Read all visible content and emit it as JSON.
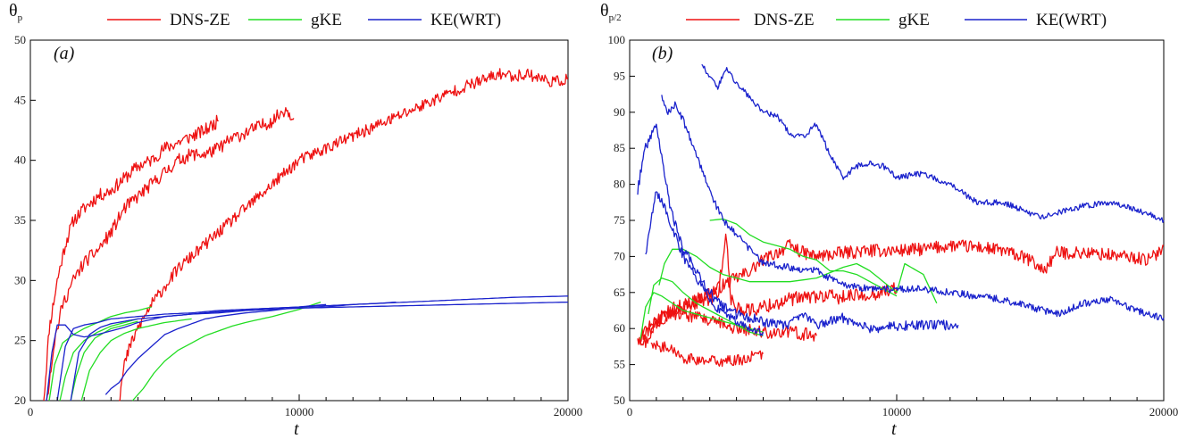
{
  "chart_data": [
    {
      "type": "line",
      "panel_label": "(a)",
      "ylabel_main": "θ",
      "ylabel_sub": "p",
      "xlabel": "t",
      "xlim": [
        0,
        20000
      ],
      "ylim": [
        20,
        50
      ],
      "xticks": [
        0,
        10000,
        20000
      ],
      "yticks": [
        20,
        25,
        30,
        35,
        40,
        45,
        50
      ],
      "grid": false,
      "legend": "top",
      "colors": {
        "DNS-ZE": "#ee1111",
        "gKE": "#22dd22",
        "KE(WRT)": "#1a22cc"
      },
      "series": [
        {
          "name": "DNS-ZE",
          "x": [
            500,
            700,
            1000,
            1300,
            1600,
            2000,
            2500,
            3000,
            3500,
            4000,
            4500,
            5000,
            5500,
            6000,
            6500,
            7000
          ],
          "y": [
            20,
            26,
            30,
            33,
            35,
            36,
            37,
            37.5,
            38.5,
            39.5,
            40,
            41,
            41.5,
            42,
            42.5,
            43.3
          ],
          "noise": 0.55
        },
        {
          "name": "DNS-ZE",
          "x": [
            600,
            900,
            1200,
            1600,
            2000,
            2500,
            3000,
            3500,
            4000,
            4500,
            5000,
            5500,
            6000,
            6500,
            7000,
            7500,
            8000,
            8500,
            9000,
            9500,
            9800
          ],
          "y": [
            20,
            25,
            28,
            30,
            31.5,
            32.5,
            34,
            36,
            37,
            38,
            39,
            40,
            40.5,
            40.5,
            41,
            41.8,
            42.3,
            42.8,
            43.3,
            44.3,
            43.5
          ],
          "noise": 0.55
        },
        {
          "name": "DNS-ZE",
          "x": [
            3300,
            3500,
            3700,
            4000,
            4500,
            5000,
            5500,
            6000,
            6500,
            7000,
            7500,
            8000,
            8500,
            9000,
            9500,
            10000,
            11000,
            12000,
            13000,
            14000,
            15000,
            16000,
            17000,
            17500,
            18000,
            18500,
            19000,
            19500,
            20000
          ],
          "y": [
            20,
            23,
            24.5,
            26,
            28,
            29.5,
            31,
            32,
            33,
            34,
            35,
            36,
            37,
            38,
            39,
            40,
            41,
            42,
            43,
            44,
            45,
            46,
            46.8,
            47.2,
            47,
            47.2,
            46.8,
            46.5,
            46.8
          ],
          "noise": 0.5
        },
        {
          "name": "gKE",
          "x": [
            700,
            900,
            1200,
            1600,
            2000,
            2500,
            3000,
            3500,
            4000,
            4500
          ],
          "y": [
            20,
            23,
            24.8,
            25.5,
            26,
            26.5,
            27,
            27.3,
            27.5,
            27.8
          ],
          "noise": 0
        },
        {
          "name": "gKE",
          "x": [
            1100,
            1300,
            1600,
            2000,
            2500,
            3000,
            3500,
            4000
          ],
          "y": [
            20,
            22,
            24,
            25,
            25.7,
            26.2,
            26.5,
            26.8
          ],
          "noise": 0
        },
        {
          "name": "gKE",
          "x": [
            1500,
            1700,
            2000,
            2400,
            3000,
            3500,
            4000
          ],
          "y": [
            20,
            22,
            24,
            25.2,
            26,
            26.3,
            26.6
          ],
          "noise": 0
        },
        {
          "name": "gKE",
          "x": [
            1900,
            2200,
            2600,
            3000,
            3500,
            4000,
            5000,
            6000
          ],
          "y": [
            20,
            22.5,
            24,
            25,
            25.6,
            26,
            26.5,
            26.8
          ],
          "noise": 0
        },
        {
          "name": "gKE",
          "x": [
            3800,
            4200,
            4600,
            5000,
            5500,
            6000,
            6500,
            7000,
            7500,
            8000,
            9000,
            10000,
            10800
          ],
          "y": [
            20,
            21,
            22.3,
            23.3,
            24.2,
            24.8,
            25.4,
            25.8,
            26.2,
            26.5,
            27,
            27.6,
            28.2
          ],
          "noise": 0
        },
        {
          "name": "KE(WRT)",
          "x": [
            600,
            800,
            1000,
            1300,
            1600,
            2000,
            2500,
            3000,
            3500,
            4000,
            5000,
            6000,
            7000,
            8000,
            9000,
            10000,
            12000,
            14000,
            16000,
            18000,
            20000
          ],
          "y": [
            20,
            24,
            26.3,
            26.3,
            25.5,
            25.3,
            25.5,
            25.8,
            26.1,
            26.5,
            27,
            27.2,
            27.4,
            27.5,
            27.6,
            27.7,
            27.8,
            27.9,
            28,
            28.1,
            28.2
          ],
          "noise": 0
        },
        {
          "name": "KE(WRT)",
          "x": [
            1000,
            1300,
            1600,
            2000,
            2500,
            3000,
            3500,
            4000,
            5000,
            6000,
            7000,
            8000,
            9000,
            10000,
            12000,
            14000,
            16000,
            18000,
            20000
          ],
          "y": [
            20,
            24.5,
            26,
            26.3,
            26.5,
            26.8,
            26.9,
            27,
            27.2,
            27.3,
            27.5,
            27.6,
            27.7,
            27.8,
            28,
            28.2,
            28.4,
            28.6,
            28.7
          ],
          "noise": 0
        },
        {
          "name": "KE(WRT)",
          "x": [
            1500,
            1800,
            2200,
            2600,
            3000,
            3500,
            4000,
            5000,
            6000,
            7000,
            8000,
            9000,
            10000,
            11000,
            12000,
            13000,
            13600
          ],
          "y": [
            20,
            24,
            25.5,
            26.1,
            26.4,
            26.6,
            26.8,
            27,
            27.2,
            27.3,
            27.5,
            27.6,
            27.7,
            27.8,
            28,
            28.1,
            28.2
          ],
          "noise": 0
        },
        {
          "name": "KE(WRT)",
          "x": [
            2800,
            3000,
            3300,
            3600,
            4000,
            4500,
            5000,
            5500,
            6000,
            6500,
            7000,
            8000,
            9000,
            10000,
            11000
          ],
          "y": [
            20.5,
            21,
            21.5,
            22.5,
            23.5,
            24.5,
            25.5,
            26,
            26.4,
            26.8,
            27,
            27.3,
            27.5,
            27.8,
            28
          ],
          "noise": 0
        }
      ]
    },
    {
      "type": "line",
      "panel_label": "(b)",
      "ylabel_main": "θ",
      "ylabel_sub": "p/2",
      "xlabel": "t",
      "xlim": [
        0,
        20000
      ],
      "ylim": [
        50,
        100
      ],
      "xticks": [
        0,
        10000,
        20000
      ],
      "yticks": [
        50,
        55,
        60,
        65,
        70,
        75,
        80,
        85,
        90,
        95,
        100
      ],
      "grid": false,
      "legend": "top",
      "colors": {
        "DNS-ZE": "#ee1111",
        "gKE": "#22dd22",
        "KE(WRT)": "#1a22cc"
      },
      "series": [
        {
          "name": "DNS-ZE",
          "x": [
            300,
            600,
            1000,
            1500,
            2000,
            2500,
            3000,
            3500,
            4000,
            4500,
            5000,
            5500,
            6000,
            6500,
            7000,
            8000,
            9000,
            10000,
            11000,
            12000,
            13000,
            14000,
            15000,
            15500,
            16000,
            17000,
            18000,
            19000,
            19500,
            20000
          ],
          "y": [
            59,
            58,
            61,
            62,
            63,
            64,
            65,
            66,
            67,
            68,
            69.5,
            70.5,
            71.5,
            70.5,
            70,
            70.5,
            70.8,
            70.8,
            71,
            71.5,
            71.3,
            70.8,
            69.5,
            68,
            70.5,
            70.5,
            70.2,
            69.8,
            69.5,
            71.5
          ],
          "noise": 0.9
        },
        {
          "name": "DNS-ZE",
          "x": [
            400,
            800,
            1300,
            1800,
            2300,
            2800,
            3300,
            3600,
            3800,
            4000,
            4500,
            5000,
            6000,
            7000,
            8000,
            9000,
            10000
          ],
          "y": [
            59,
            60,
            62,
            63,
            63.5,
            64,
            64.5,
            73,
            64,
            63,
            62.5,
            63,
            64,
            64.5,
            64.3,
            64.8,
            65.5
          ],
          "noise": 1.0
        },
        {
          "name": "DNS-ZE",
          "x": [
            300,
            600,
            1000,
            1500,
            2000,
            2500,
            3000,
            3500,
            4000,
            4500,
            5000,
            6000,
            7000
          ],
          "y": [
            58,
            60,
            61,
            62,
            62,
            61.5,
            61,
            60.5,
            60,
            59.8,
            59.5,
            59.5,
            59
          ],
          "noise": 0.9
        },
        {
          "name": "DNS-ZE",
          "x": [
            800,
            1200,
            1600,
            2000,
            2500,
            3000,
            3500,
            4000,
            4500,
            5000
          ],
          "y": [
            58,
            57.5,
            57,
            56,
            55.5,
            55.5,
            55.5,
            55.5,
            56,
            56.5
          ],
          "noise": 0.8
        },
        {
          "name": "gKE",
          "x": [
            400,
            600,
            900,
            1200,
            1600,
            2000,
            2500,
            3000,
            3500,
            4000,
            4500,
            5000
          ],
          "y": [
            58.5,
            63,
            65,
            64.5,
            63.5,
            62.5,
            62,
            61.5,
            61,
            60.5,
            60,
            59.5
          ],
          "noise": 0
        },
        {
          "name": "gKE",
          "x": [
            700,
            900,
            1200,
            1600,
            2000,
            2500,
            3000,
            3500,
            4000,
            4500,
            5000
          ],
          "y": [
            62,
            66,
            67,
            66.5,
            65,
            63.5,
            62.5,
            61.5,
            60.5,
            59.5,
            59
          ],
          "noise": 0
        },
        {
          "name": "gKE",
          "x": [
            1100,
            1300,
            1600,
            2000,
            2500,
            3000,
            3500,
            4000,
            4500,
            5000,
            6000,
            7000,
            8000,
            8500,
            9000,
            9500,
            10000,
            10300,
            11000,
            11500
          ],
          "y": [
            66,
            69,
            71,
            71,
            70,
            68.5,
            67.5,
            67,
            66.5,
            66.5,
            66.5,
            67,
            68.5,
            69,
            68,
            66.5,
            65,
            69,
            67.5,
            63.5
          ],
          "noise": 0
        },
        {
          "name": "gKE",
          "x": [
            3000,
            3500,
            4000,
            4500,
            5000,
            5500,
            6000,
            6500,
            7000,
            7500,
            8000,
            8500,
            9000,
            9500,
            10000
          ],
          "y": [
            75,
            75.2,
            74.5,
            73,
            72,
            71.5,
            71,
            70,
            69.5,
            68,
            68,
            67.5,
            66.5,
            65.5,
            64.5
          ],
          "noise": 0
        },
        {
          "name": "KE(WRT)",
          "x": [
            300,
            500,
            800,
            1000,
            1200,
            1500,
            2000,
            2500,
            3000,
            3500,
            4000,
            4500,
            5000,
            5500,
            6000,
            6500,
            7000,
            8000,
            9000,
            10000,
            11000,
            12000,
            12300
          ],
          "y": [
            79,
            84,
            87,
            88,
            84,
            77,
            71,
            68,
            65,
            63,
            62,
            61.5,
            61,
            60.5,
            60.5,
            62,
            60.5,
            61.5,
            60,
            60.3,
            60.5,
            60.5,
            60.5
          ],
          "noise": 0.7
        },
        {
          "name": "KE(WRT)",
          "x": [
            1200,
            1400,
            1700,
            2000,
            2500,
            3000,
            3500,
            4000,
            4500,
            5000,
            6000,
            7000,
            8000,
            9000,
            10000,
            11000,
            12000,
            13000,
            14000,
            15000,
            16000,
            17000,
            18000,
            19000,
            20000
          ],
          "y": [
            92,
            90,
            91,
            89,
            84,
            79,
            75,
            73,
            71,
            69,
            68.5,
            68,
            66,
            65.5,
            65.5,
            65.5,
            65,
            64.5,
            64,
            63,
            62,
            63.5,
            64,
            62.5,
            61.5
          ],
          "noise": 0.5
        },
        {
          "name": "KE(WRT)",
          "x": [
            2700,
            3000,
            3300,
            3600,
            4000,
            4500,
            5000,
            5500,
            6000,
            6500,
            7000,
            7500,
            8000,
            8500,
            9000,
            9500,
            10000,
            11000,
            12000,
            13000,
            14000,
            15000,
            15500,
            16000,
            17000,
            18000,
            19000,
            20000
          ],
          "y": [
            96.5,
            95,
            93.5,
            96,
            94,
            92,
            90,
            89.5,
            87,
            86.5,
            88.5,
            84,
            81,
            82.5,
            83,
            82.5,
            81,
            81.5,
            80,
            77.5,
            77.5,
            76,
            75.5,
            76,
            77,
            77.5,
            76.5,
            75
          ],
          "noise": 0.4
        },
        {
          "name": "KE(WRT)",
          "x": [
            600,
            800,
            1000,
            1300,
            1600,
            2000,
            2500,
            3000,
            3500,
            4000,
            4500,
            5000
          ],
          "y": [
            70,
            75,
            79,
            77,
            74,
            70,
            67,
            64,
            62,
            61,
            60,
            59.5
          ],
          "noise": 0.6
        }
      ]
    }
  ],
  "legend_labels": [
    "DNS-ZE",
    "gKE",
    "KE(WRT)"
  ]
}
